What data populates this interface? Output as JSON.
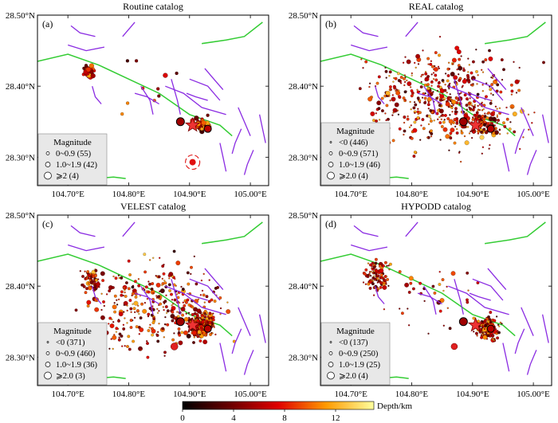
{
  "figure": {
    "x_ticks": [
      104.7,
      104.8,
      104.9,
      105.0
    ],
    "x_tick_labels": [
      "104.70°E",
      "104.80°E",
      "104.90°E",
      "105.00°E"
    ],
    "y_ticks": [
      28.3,
      28.4,
      28.5
    ],
    "y_tick_labels": [
      "28.30°N",
      "28.40°N",
      "28.50°N"
    ],
    "xlim": [
      104.65,
      105.03
    ],
    "ylim": [
      28.26,
      28.5
    ],
    "colors": {
      "fault": "#8a2be2",
      "boundary": "#33cc33",
      "mainshock": "#ee3333",
      "legend_bg": "#e8e8e8"
    }
  },
  "chart_data": [
    {
      "type": "scatter",
      "panel": "a",
      "label": "(a)",
      "title": "Routine catalog",
      "legend_title": "Magnitude",
      "legend": [
        "0~0.9 (55)",
        "1.0~1.9 (42)",
        "⩾2 (4)"
      ],
      "xlim": [
        104.65,
        105.03
      ],
      "ylim": [
        28.26,
        28.5
      ]
    },
    {
      "type": "scatter",
      "panel": "b",
      "label": "(b)",
      "title": "REAL catalog",
      "legend_title": "Magnitude",
      "legend": [
        "<0 (446)",
        "0~0.9 (571)",
        "1.0~1.9 (46)",
        "⩾2.0 (4)"
      ],
      "xlim": [
        104.65,
        105.03
      ],
      "ylim": [
        28.26,
        28.5
      ]
    },
    {
      "type": "scatter",
      "panel": "c",
      "label": "(c)",
      "title": "VELEST catalog",
      "legend_title": "Magnitude",
      "legend": [
        "<0 (371)",
        "0~0.9 (460)",
        "1.0~1.9 (36)",
        "⩾2.0 (3)"
      ],
      "xlim": [
        104.65,
        105.03
      ],
      "ylim": [
        28.26,
        28.5
      ]
    },
    {
      "type": "scatter",
      "panel": "d",
      "label": "(d)",
      "title": "HYPODD catalog",
      "legend_title": "Magnitude",
      "legend": [
        "<0 (137)",
        "0~0.9 (250)",
        "1.0~1.9 (25)",
        "⩾2.0 (4)"
      ],
      "xlim": [
        104.65,
        105.03
      ],
      "ylim": [
        28.26,
        28.5
      ]
    }
  ],
  "colorbar": {
    "label": "Depth/km",
    "ticks": [
      0,
      4,
      8,
      12
    ],
    "range": [
      0,
      15
    ]
  }
}
